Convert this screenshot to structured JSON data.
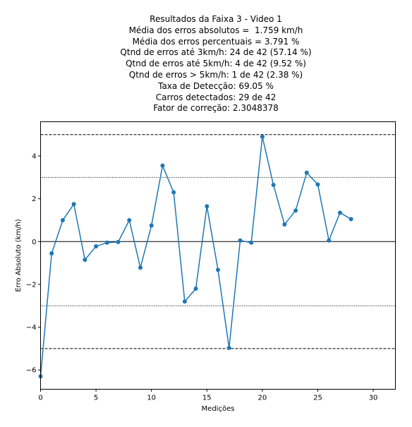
{
  "title_lines": [
    "Resultados da Faixa 3 - Video 1",
    "",
    "Média dos erros absolutos =  1.759 km/h",
    "Média dos erros percentuais = 3.791 %",
    "Qtnd de erros até 3km/h: 24 de 42 (57.14 %)",
    "Qtnd de erros até 5km/h: 4 de 42 (9.52 %)",
    "Qtnd de erros > 5km/h: 1 de 42 (2.38 %)",
    "Taxa de Detecção: 69.05 %",
    "Carros detectados: 29 de 42",
    "Fator de correção: 2.3048378"
  ],
  "colors": {
    "series": "#1f77b4",
    "axis": "#000000",
    "reference": "#000000"
  },
  "chart_data": {
    "type": "line",
    "title": "Resultados da Faixa 3 - Video 1",
    "xlabel": "Medições",
    "ylabel": "Erro Absoluto (km/h)",
    "xlim": [
      0,
      32
    ],
    "ylim": [
      -6.9,
      5.6
    ],
    "xticks": [
      0,
      5,
      10,
      15,
      20,
      25,
      30
    ],
    "yticks": [
      -6,
      -4,
      -2,
      0,
      2,
      4
    ],
    "grid": false,
    "reference_lines": [
      {
        "y": 5,
        "style": "dashed"
      },
      {
        "y": 3,
        "style": "dotted"
      },
      {
        "y": 0,
        "style": "solid"
      },
      {
        "y": -3,
        "style": "dotted"
      },
      {
        "y": -5,
        "style": "dashed"
      }
    ],
    "series": [
      {
        "marker": "circle",
        "x": [
          0,
          1,
          2,
          3,
          4,
          5,
          6,
          7,
          8,
          9,
          10,
          11,
          12,
          13,
          14,
          15,
          16,
          17,
          18,
          19,
          20,
          21,
          22,
          23,
          24,
          25,
          26,
          27,
          28
        ],
        "y": [
          -6.3,
          -0.55,
          1.0,
          1.75,
          -0.85,
          -0.22,
          -0.05,
          -0.02,
          1.0,
          -1.22,
          0.75,
          3.55,
          2.3,
          -2.8,
          -2.2,
          1.65,
          -1.32,
          -4.97,
          0.05,
          -0.05,
          4.9,
          2.65,
          0.8,
          1.45,
          3.22,
          2.67,
          0.05,
          1.35,
          1.05
        ]
      }
    ]
  }
}
